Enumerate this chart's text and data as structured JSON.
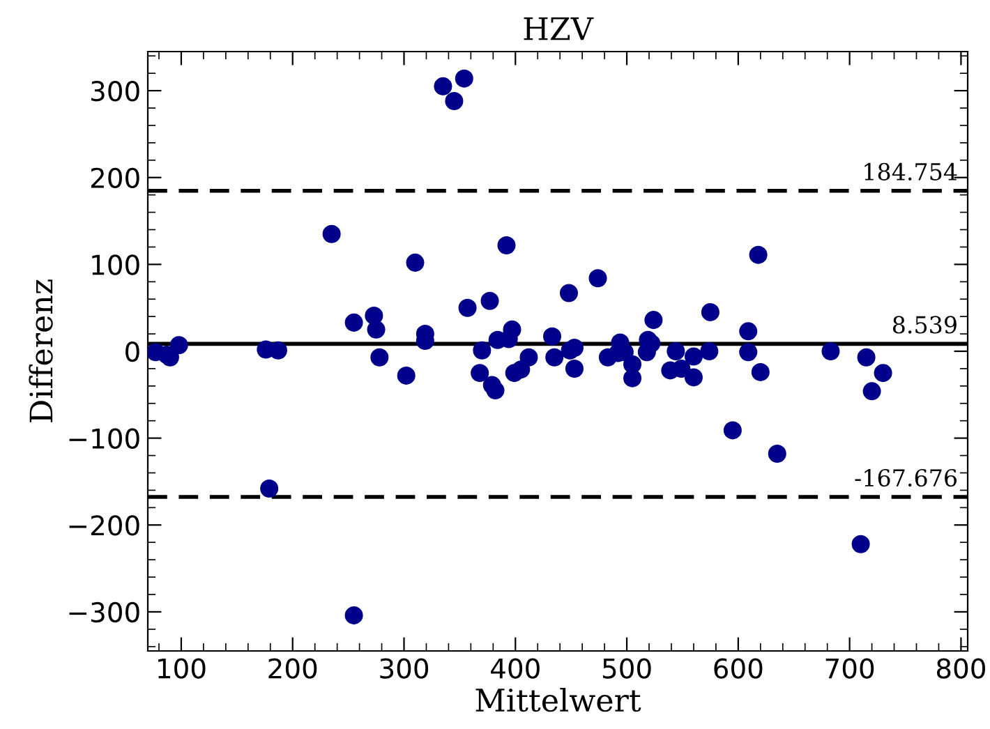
{
  "chart_data": {
    "type": "scatter",
    "title": "HZV",
    "xlabel": "Mittelwert",
    "ylabel": "Differenz",
    "x": [
      77,
      87,
      90,
      98,
      176,
      187,
      179,
      235,
      255,
      273,
      275,
      278,
      255,
      302,
      310,
      319,
      319,
      335,
      345,
      354,
      357,
      368,
      370,
      377,
      379,
      382,
      384,
      392,
      394,
      397,
      399,
      405,
      412,
      433,
      435,
      448,
      474,
      453,
      449,
      453,
      483,
      494,
      492,
      498,
      505,
      505,
      518,
      519,
      522,
      524,
      544,
      539,
      549,
      560,
      560,
      574,
      575,
      609,
      609,
      618,
      620,
      595,
      635,
      683,
      715,
      730,
      720,
      710
    ],
    "series": [
      {
        "color": "#00008b",
        "values": [
          -1,
          -4,
          -7,
          7,
          2,
          1,
          -158,
          135,
          33,
          41,
          25,
          -7,
          -304,
          -28,
          102,
          20,
          12,
          305,
          288,
          314,
          50,
          -25,
          1,
          58,
          -39,
          -45,
          13,
          122,
          14,
          25,
          -25,
          -21,
          -7,
          17,
          -7,
          67,
          84,
          4,
          1,
          -20,
          -7,
          10,
          -2,
          -1,
          -15,
          -31,
          -1,
          13,
          9,
          36,
          0,
          -22,
          -20,
          -6,
          -30,
          0,
          45,
          23,
          -1,
          111,
          -24,
          -91,
          -118,
          0,
          -7,
          -25,
          -46,
          -222
        ]
      }
    ],
    "marker": "circle",
    "xlim": [
      70,
      806
    ],
    "ylim": [
      -345,
      345
    ],
    "xticks": [
      100,
      200,
      300,
      400,
      500,
      600,
      700,
      800
    ],
    "yticks": [
      -300,
      -200,
      -100,
      0,
      100,
      200,
      300
    ],
    "ref_lines": [
      {
        "axis": "y",
        "value": 184.754,
        "label": "184.754",
        "color": "#000000",
        "line_style": "dashed"
      },
      {
        "axis": "y",
        "value": 8.539,
        "label": "8.539",
        "color": "#000000",
        "line_style": "solid"
      },
      {
        "axis": "y",
        "value": -167.676,
        "label": "-167.676",
        "color": "#000000",
        "line_style": "dashed"
      }
    ],
    "grid": false,
    "legend": false
  }
}
